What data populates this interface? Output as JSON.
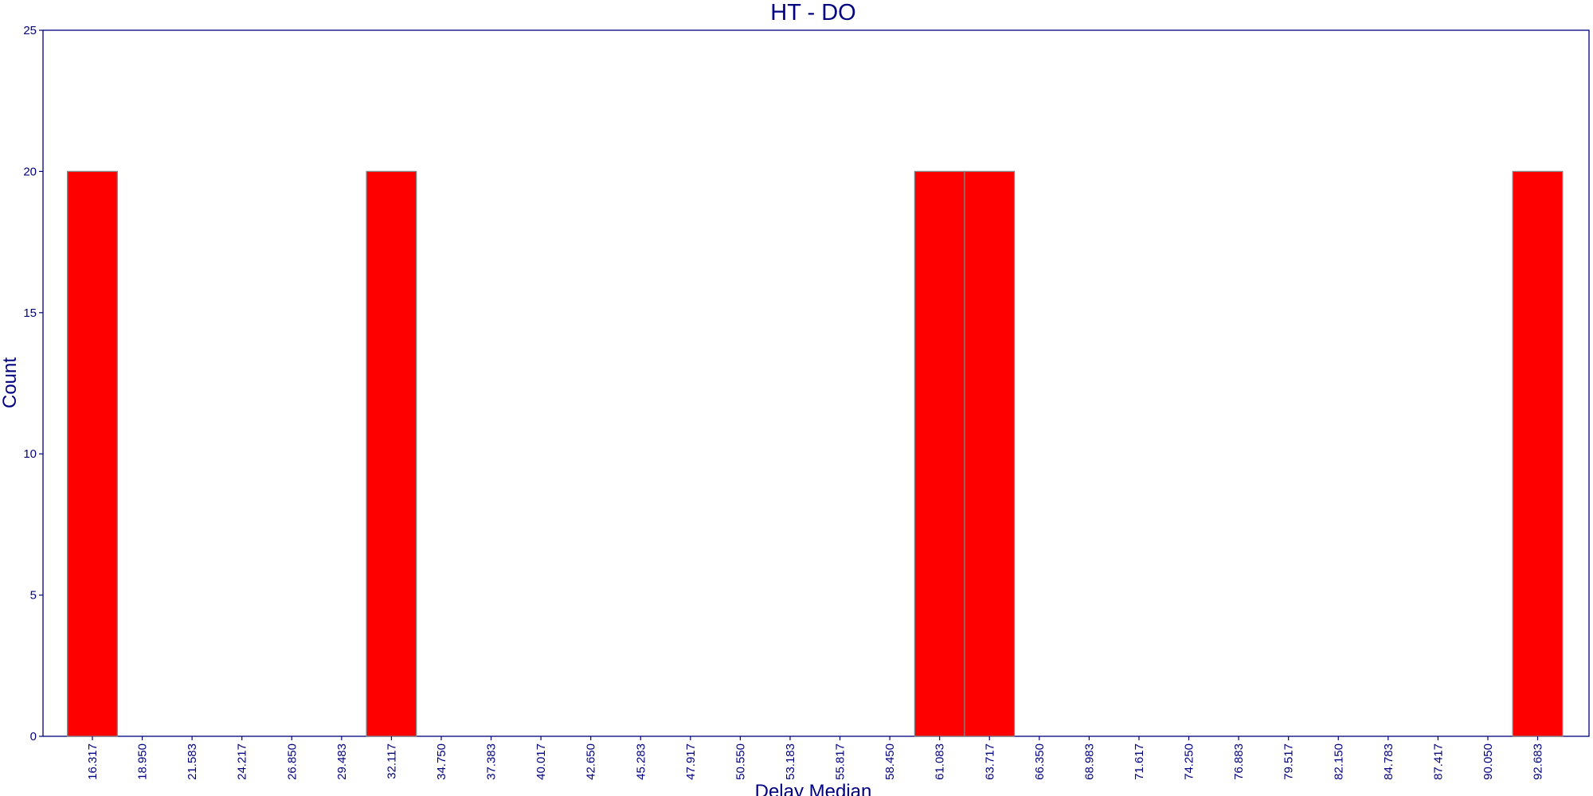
{
  "chart_data": {
    "type": "bar",
    "title": "HT - DO",
    "xlabel": "Delay Median",
    "ylabel": "Count",
    "ylim": [
      0,
      25
    ],
    "yticks": [
      0,
      5,
      10,
      15,
      20,
      25
    ],
    "grid": false,
    "legend": "none",
    "bar_color": "#ff0000",
    "bar_edge_color": "#808080",
    "axis_color": "#000080",
    "categories": [
      "16.317",
      "18.950",
      "21.583",
      "24.217",
      "26.850",
      "29.483",
      "32.117",
      "34.750",
      "37.383",
      "40.017",
      "42.650",
      "45.283",
      "47.917",
      "50.550",
      "53.183",
      "55.817",
      "58.450",
      "61.083",
      "63.717",
      "66.350",
      "68.983",
      "71.617",
      "74.250",
      "76.883",
      "79.517",
      "82.150",
      "84.783",
      "87.417",
      "90.050",
      "92.683"
    ],
    "values": [
      20,
      0,
      0,
      0,
      0,
      0,
      20,
      0,
      0,
      0,
      0,
      0,
      0,
      0,
      0,
      0,
      0,
      20,
      20,
      0,
      0,
      0,
      0,
      0,
      0,
      0,
      0,
      0,
      0,
      20
    ]
  }
}
